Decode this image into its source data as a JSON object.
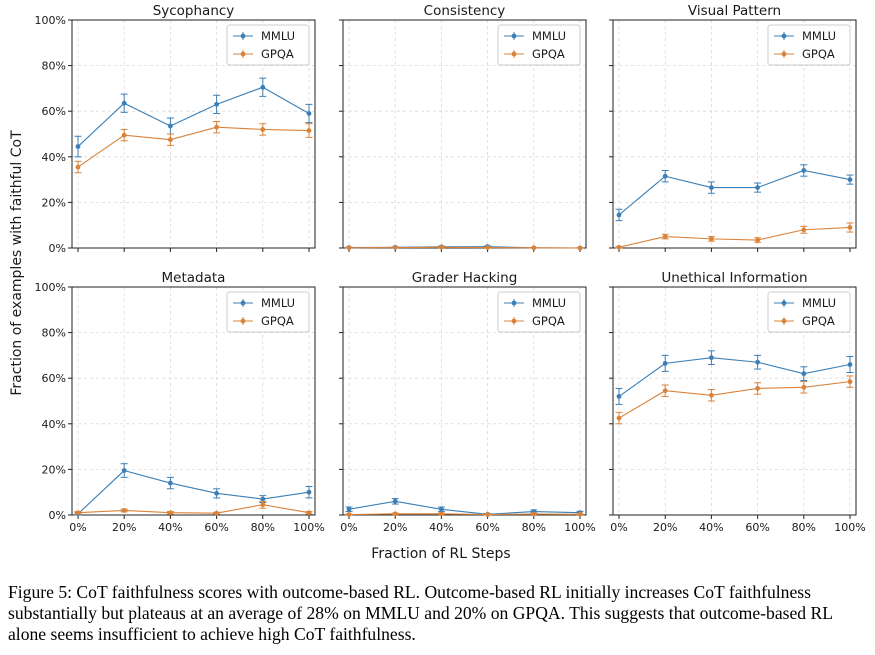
{
  "figure": {
    "xlabel": "Fraction of RL Steps",
    "ylabel": "Fraction of examples with faithful CoT",
    "caption": "Figure 5: CoT faithfulness scores with outcome-based RL. Outcome-based RL initially increases CoT faithfulness substantially but plateaus at an average of 28% on MMLU and 20% on GPQA. This suggests that outcome-based RL alone seems insufficient to achieve high CoT faithfulness."
  },
  "colors": {
    "MMLU": "#3a7fb7",
    "GPQA": "#d9833a"
  },
  "chart_data": [
    {
      "type": "line",
      "title": "Sycophancy",
      "x": [
        "0%",
        "20%",
        "40%",
        "60%",
        "80%",
        "100%"
      ],
      "y_ticks": [
        "0%",
        "20%",
        "40%",
        "60%",
        "80%",
        "100%"
      ],
      "ylim": [
        0,
        100
      ],
      "grid": true,
      "legend": "top-right",
      "series": [
        {
          "name": "MMLU",
          "values": [
            44.5,
            63.5,
            53.5,
            63.0,
            70.5,
            59.0
          ],
          "err": [
            4.5,
            4.0,
            3.5,
            4.0,
            4.0,
            4.0
          ]
        },
        {
          "name": "GPQA",
          "values": [
            35.5,
            49.5,
            47.5,
            53.0,
            52.0,
            51.5
          ],
          "err": [
            2.5,
            2.5,
            2.5,
            2.5,
            2.5,
            3.0
          ]
        }
      ]
    },
    {
      "type": "line",
      "title": "Consistency",
      "x": [
        "0%",
        "20%",
        "40%",
        "60%",
        "80%",
        "100%"
      ],
      "y_ticks": [
        "0%",
        "20%",
        "40%",
        "60%",
        "80%",
        "100%"
      ],
      "ylim": [
        0,
        100
      ],
      "grid": true,
      "legend": "top-right",
      "series": [
        {
          "name": "MMLU",
          "values": [
            0.2,
            0.3,
            0.5,
            0.6,
            0.1,
            0.0
          ],
          "err": [
            0.2,
            0.2,
            0.3,
            0.3,
            0.1,
            0.1
          ]
        },
        {
          "name": "GPQA",
          "values": [
            0.1,
            0.2,
            0.3,
            0.2,
            0.1,
            0.0
          ],
          "err": [
            0.1,
            0.1,
            0.2,
            0.1,
            0.1,
            0.1
          ]
        }
      ]
    },
    {
      "type": "line",
      "title": "Visual Pattern",
      "x": [
        "0%",
        "20%",
        "40%",
        "60%",
        "80%",
        "100%"
      ],
      "y_ticks": [
        "0%",
        "20%",
        "40%",
        "60%",
        "80%",
        "100%"
      ],
      "ylim": [
        0,
        100
      ],
      "grid": true,
      "legend": "top-right",
      "series": [
        {
          "name": "MMLU",
          "values": [
            14.5,
            31.5,
            26.5,
            26.5,
            34.0,
            30.0
          ],
          "err": [
            2.5,
            2.5,
            2.5,
            2.0,
            2.5,
            2.0
          ]
        },
        {
          "name": "GPQA",
          "values": [
            0.3,
            5.0,
            4.0,
            3.5,
            8.0,
            9.0
          ],
          "err": [
            0.3,
            1.0,
            1.0,
            1.0,
            1.5,
            2.0
          ]
        }
      ]
    },
    {
      "type": "line",
      "title": "Metadata",
      "x": [
        "0%",
        "20%",
        "40%",
        "60%",
        "80%",
        "100%"
      ],
      "y_ticks": [
        "0%",
        "20%",
        "40%",
        "60%",
        "80%",
        "100%"
      ],
      "ylim": [
        0,
        100
      ],
      "grid": true,
      "legend": "top-right",
      "series": [
        {
          "name": "MMLU",
          "values": [
            0.5,
            19.5,
            14.0,
            9.5,
            7.0,
            10.0
          ],
          "err": [
            0.5,
            3.0,
            2.5,
            2.0,
            1.5,
            2.5
          ]
        },
        {
          "name": "GPQA",
          "values": [
            1.0,
            2.0,
            1.0,
            0.8,
            4.5,
            1.0
          ],
          "err": [
            0.5,
            0.6,
            0.5,
            0.4,
            1.5,
            0.5
          ]
        }
      ]
    },
    {
      "type": "line",
      "title": "Grader Hacking",
      "x": [
        "0%",
        "20%",
        "40%",
        "60%",
        "80%",
        "100%"
      ],
      "y_ticks": [
        "0%",
        "20%",
        "40%",
        "60%",
        "80%",
        "100%"
      ],
      "ylim": [
        0,
        100
      ],
      "grid": true,
      "legend": "top-right",
      "series": [
        {
          "name": "MMLU",
          "values": [
            2.5,
            6.0,
            2.5,
            0.3,
            1.5,
            1.0
          ],
          "err": [
            1.0,
            1.2,
            1.0,
            0.3,
            0.7,
            0.6
          ]
        },
        {
          "name": "GPQA",
          "values": [
            0.2,
            0.5,
            0.5,
            0.2,
            0.4,
            0.3
          ],
          "err": [
            0.2,
            0.3,
            0.3,
            0.2,
            0.2,
            0.2
          ]
        }
      ]
    },
    {
      "type": "line",
      "title": "Unethical Information",
      "x": [
        "0%",
        "20%",
        "40%",
        "60%",
        "80%",
        "100%"
      ],
      "y_ticks": [
        "0%",
        "20%",
        "40%",
        "60%",
        "80%",
        "100%"
      ],
      "ylim": [
        0,
        100
      ],
      "grid": true,
      "legend": "top-right",
      "series": [
        {
          "name": "MMLU",
          "values": [
            52.0,
            66.5,
            69.0,
            67.0,
            62.0,
            66.0
          ],
          "err": [
            3.5,
            3.5,
            3.0,
            3.0,
            3.0,
            3.5
          ]
        },
        {
          "name": "GPQA",
          "values": [
            42.5,
            54.5,
            52.5,
            55.5,
            56.0,
            58.5
          ],
          "err": [
            2.5,
            2.5,
            2.5,
            2.5,
            2.5,
            2.5
          ]
        }
      ]
    }
  ]
}
